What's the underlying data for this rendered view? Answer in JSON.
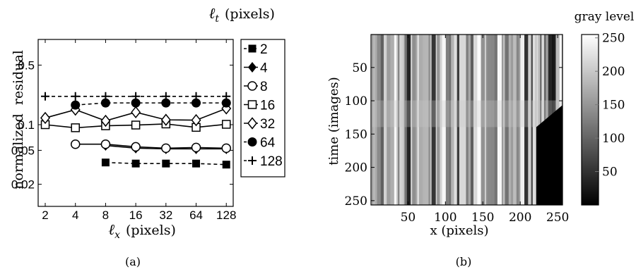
{
  "chart_data": [
    {
      "panel": "(a)",
      "type": "line",
      "xlabel": "ℓ",
      "xlabel_sub": "x",
      "xlabel_unit": "(pixels)",
      "ylabel": "normalized  residual",
      "legend_title": "ℓ",
      "legend_title_sub": "t",
      "legend_title_unit": "(pixels)",
      "legend_placement": "right",
      "x_scale": "log2",
      "y_scale": "log",
      "x": [
        2,
        4,
        8,
        16,
        32,
        64,
        128
      ],
      "x_tick_labels": [
        "2",
        "4",
        "8",
        "16",
        "32",
        "64",
        "128"
      ],
      "y_ticks": [
        0.02,
        0.05,
        0.1,
        0.5
      ],
      "y_tick_labels": [
        "0.02",
        "0.05",
        "0.1",
        "0.5"
      ],
      "xlim": [
        1.7,
        150
      ],
      "ylim": [
        0.011,
        1.0
      ],
      "series": [
        {
          "name": "2",
          "marker": "square",
          "line": "dashed",
          "x": [
            8,
            16,
            32,
            64,
            128
          ],
          "values": [
            0.036,
            0.035,
            0.035,
            0.035,
            0.034
          ]
        },
        {
          "name": "4",
          "marker": "diamond",
          "line": "solid",
          "x": [
            8,
            16,
            32,
            64,
            128
          ],
          "values": [
            0.057,
            0.053,
            0.052,
            0.052,
            0.052
          ]
        },
        {
          "name": "8",
          "marker": "circle-open",
          "line": "solid",
          "x": [
            4,
            8,
            16,
            32,
            64,
            128
          ],
          "values": [
            0.059,
            0.059,
            0.055,
            0.053,
            0.054,
            0.053
          ]
        },
        {
          "name": "16",
          "marker": "square-open",
          "line": "solid",
          "x": [
            2,
            4,
            8,
            16,
            32,
            64,
            128
          ],
          "values": [
            0.1,
            0.092,
            0.097,
            0.099,
            0.102,
            0.093,
            0.101
          ]
        },
        {
          "name": "32",
          "marker": "diamond-open",
          "line": "solid",
          "x": [
            2,
            4,
            8,
            16,
            32,
            64,
            128
          ],
          "values": [
            0.12,
            0.15,
            0.111,
            0.14,
            0.114,
            0.113,
            0.155
          ]
        },
        {
          "name": "64",
          "marker": "circle",
          "line": "dashed",
          "x": [
            4,
            8,
            16,
            32,
            64,
            128
          ],
          "values": [
            0.17,
            0.18,
            0.18,
            0.18,
            0.18,
            0.18
          ]
        },
        {
          "name": "128",
          "marker": "plus",
          "line": "dashed",
          "x": [
            2,
            4,
            8,
            16,
            32,
            64,
            128
          ],
          "values": [
            0.215,
            0.215,
            0.215,
            0.215,
            0.215,
            0.215,
            0.215
          ]
        }
      ]
    },
    {
      "panel": "(b)",
      "type": "heatmap",
      "xlabel": "x (pixels)",
      "ylabel": "time (images)",
      "colorbar_label": "gray level",
      "colormap": "gray",
      "x_range": [
        1,
        256
      ],
      "y_range": [
        1,
        256
      ],
      "y_direction": "down",
      "x_tick_labels": [
        "50",
        "100",
        "150",
        "200",
        "250"
      ],
      "y_tick_labels": [
        "50",
        "100",
        "150",
        "200",
        "250"
      ],
      "colorbar_range": [
        0,
        255
      ],
      "colorbar_tick_labels": [
        "50",
        "100",
        "150",
        "200",
        "250"
      ],
      "brighter_band_time": [
        100,
        140
      ],
      "black_region": {
        "x_from": 222,
        "starts_at_time": 140,
        "diagonal_to_x": 256,
        "diagonal_to_time": 107
      }
    }
  ],
  "captions": {
    "a": "(a)",
    "b": "(b)"
  }
}
